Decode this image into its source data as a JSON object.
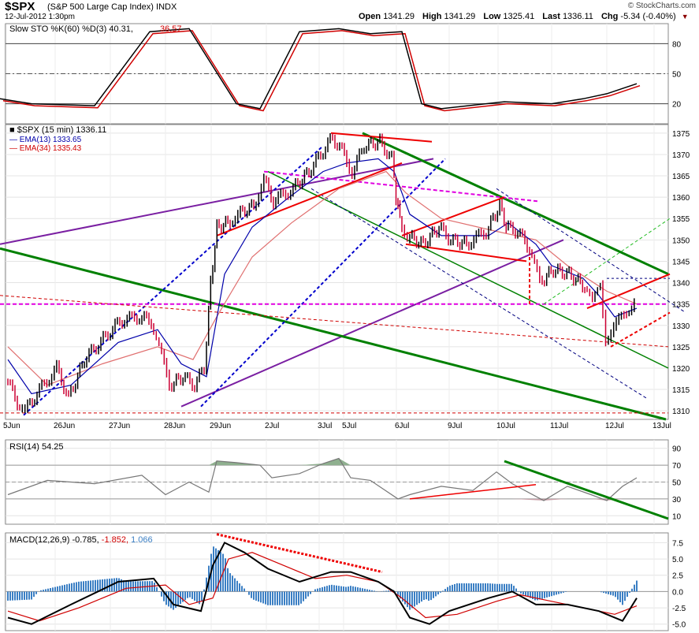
{
  "header": {
    "symbol": "$SPX",
    "description": "(S&P 500 Large Cap Index)",
    "exchange": "INDX",
    "datetime": "12-Jul-2012 1:30pm",
    "open_label": "Open",
    "open": "1341.29",
    "high_label": "High",
    "high": "1341.29",
    "low_label": "Low",
    "low": "1325.41",
    "last_label": "Last",
    "last": "1336.11",
    "chg_label": "Chg",
    "chg": "-5.34 (-0.40%)",
    "copyright": "© StockCharts.com"
  },
  "chart_data": [
    {
      "type": "line",
      "title": "Slow STO %K(60) %D(3)",
      "legend": [
        {
          "name": "%K(60)",
          "value": "40.31",
          "color": "#000000"
        },
        {
          "name": "%D(3)",
          "value": "36.57",
          "color": "#d00000"
        }
      ],
      "yticks": [
        20,
        50,
        80
      ],
      "ylim": [
        0,
        100
      ],
      "points_k": [
        [
          0,
          25
        ],
        [
          40,
          20
        ],
        [
          120,
          18
        ],
        [
          190,
          92
        ],
        [
          240,
          95
        ],
        [
          300,
          20
        ],
        [
          330,
          15
        ],
        [
          380,
          92
        ],
        [
          430,
          95
        ],
        [
          470,
          90
        ],
        [
          510,
          92
        ],
        [
          535,
          20
        ],
        [
          560,
          15
        ],
        [
          640,
          22
        ],
        [
          700,
          20
        ],
        [
          740,
          25
        ],
        [
          770,
          30
        ],
        [
          808,
          40
        ]
      ]
    },
    {
      "type": "line",
      "title": "$SPX (15 min)",
      "last": "1336.11",
      "legend": [
        {
          "name": "$SPX (15 min)",
          "value": "1336.11",
          "color": "#000000"
        },
        {
          "name": "EMA(13)",
          "value": "1333.65",
          "color": "#0000aa"
        },
        {
          "name": "EMA(34)",
          "value": "1335.43",
          "color": "#d00000"
        }
      ],
      "x_labels": [
        "5Jun",
        "26Jun",
        "27Jun",
        "28Jun",
        "29Jun",
        "2Jul",
        "3Jul",
        "5Jul",
        "6Jul",
        "9Jul",
        "10Jul",
        "11Jul",
        "12Jul",
        "13Jul"
      ],
      "yticks": [
        1310,
        1315,
        1320,
        1325,
        1330,
        1335,
        1340,
        1345,
        1350,
        1355,
        1360,
        1365,
        1370,
        1375
      ],
      "ylim": [
        1308,
        1377
      ],
      "price": [
        [
          10,
          1318
        ],
        [
          25,
          1312
        ],
        [
          35,
          1310
        ],
        [
          50,
          1314
        ],
        [
          75,
          1320
        ],
        [
          90,
          1313
        ],
        [
          110,
          1322
        ],
        [
          140,
          1328
        ],
        [
          155,
          1331
        ],
        [
          180,
          1332
        ],
        [
          195,
          1331
        ],
        [
          205,
          1325
        ],
        [
          218,
          1316
        ],
        [
          235,
          1318
        ],
        [
          250,
          1316
        ],
        [
          262,
          1320
        ],
        [
          270,
          1340
        ],
        [
          278,
          1353
        ],
        [
          292,
          1354
        ],
        [
          305,
          1356
        ],
        [
          325,
          1358
        ],
        [
          338,
          1364
        ],
        [
          350,
          1359
        ],
        [
          375,
          1362
        ],
        [
          395,
          1366
        ],
        [
          410,
          1370
        ],
        [
          425,
          1374
        ],
        [
          440,
          1370
        ],
        [
          450,
          1366
        ],
        [
          465,
          1372
        ],
        [
          485,
          1373
        ],
        [
          500,
          1369
        ],
        [
          505,
          1360
        ],
        [
          510,
          1355
        ],
        [
          520,
          1351
        ],
        [
          540,
          1349
        ],
        [
          560,
          1353
        ],
        [
          575,
          1350
        ],
        [
          595,
          1349
        ],
        [
          620,
          1352
        ],
        [
          637,
          1358
        ],
        [
          645,
          1353
        ],
        [
          660,
          1352
        ],
        [
          675,
          1348
        ],
        [
          688,
          1340
        ],
        [
          705,
          1343
        ],
        [
          725,
          1342
        ],
        [
          745,
          1339
        ],
        [
          755,
          1335
        ],
        [
          765,
          1340
        ],
        [
          772,
          1327
        ],
        [
          782,
          1330
        ],
        [
          795,
          1332
        ],
        [
          808,
          1336
        ]
      ],
      "ema13": [
        [
          10,
          1322
        ],
        [
          40,
          1314
        ],
        [
          90,
          1316
        ],
        [
          150,
          1326
        ],
        [
          200,
          1329
        ],
        [
          230,
          1321
        ],
        [
          262,
          1318
        ],
        [
          285,
          1342
        ],
        [
          320,
          1353
        ],
        [
          360,
          1359
        ],
        [
          410,
          1366
        ],
        [
          440,
          1368
        ],
        [
          480,
          1369
        ],
        [
          500,
          1366
        ],
        [
          520,
          1356
        ],
        [
          560,
          1351
        ],
        [
          620,
          1351
        ],
        [
          645,
          1354
        ],
        [
          680,
          1349
        ],
        [
          700,
          1344
        ],
        [
          740,
          1341
        ],
        [
          760,
          1337
        ],
        [
          780,
          1332
        ],
        [
          808,
          1334
        ]
      ],
      "ema34": [
        [
          10,
          1325
        ],
        [
          60,
          1316
        ],
        [
          130,
          1321
        ],
        [
          200,
          1325
        ],
        [
          245,
          1322
        ],
        [
          275,
          1332
        ],
        [
          320,
          1346
        ],
        [
          370,
          1354
        ],
        [
          430,
          1362
        ],
        [
          490,
          1366
        ],
        [
          515,
          1361
        ],
        [
          560,
          1355
        ],
        [
          630,
          1352
        ],
        [
          680,
          1350
        ],
        [
          720,
          1344
        ],
        [
          770,
          1338
        ],
        [
          808,
          1335
        ]
      ]
    },
    {
      "type": "area",
      "title": "RSI(14)",
      "value": "54.25",
      "yticks": [
        10,
        30,
        50,
        70,
        90
      ],
      "ylim": [
        0,
        100
      ],
      "points": [
        [
          10,
          35
        ],
        [
          60,
          52
        ],
        [
          120,
          48
        ],
        [
          180,
          58
        ],
        [
          210,
          35
        ],
        [
          240,
          50
        ],
        [
          265,
          38
        ],
        [
          275,
          75
        ],
        [
          300,
          73
        ],
        [
          330,
          70
        ],
        [
          345,
          55
        ],
        [
          380,
          60
        ],
        [
          410,
          72
        ],
        [
          430,
          78
        ],
        [
          445,
          55
        ],
        [
          470,
          52
        ],
        [
          505,
          30
        ],
        [
          520,
          35
        ],
        [
          560,
          45
        ],
        [
          600,
          40
        ],
        [
          630,
          62
        ],
        [
          650,
          48
        ],
        [
          690,
          28
        ],
        [
          720,
          45
        ],
        [
          750,
          35
        ],
        [
          770,
          28
        ],
        [
          790,
          45
        ],
        [
          808,
          55
        ]
      ]
    },
    {
      "type": "line",
      "title": "MACD(12,26,9)",
      "values": [
        "-0.785",
        "-1.852",
        "1.066"
      ],
      "yticks": [
        -5.0,
        -2.5,
        0.0,
        2.5,
        5.0,
        7.5
      ],
      "ylim": [
        -6,
        9
      ],
      "macd": [
        [
          10,
          -4
        ],
        [
          40,
          -5
        ],
        [
          90,
          -2
        ],
        [
          150,
          1.5
        ],
        [
          195,
          2
        ],
        [
          220,
          -2
        ],
        [
          255,
          -3
        ],
        [
          270,
          4
        ],
        [
          285,
          7.5
        ],
        [
          310,
          6
        ],
        [
          340,
          3.5
        ],
        [
          380,
          1.5
        ],
        [
          420,
          3
        ],
        [
          445,
          3
        ],
        [
          480,
          1.5
        ],
        [
          500,
          0
        ],
        [
          520,
          -4
        ],
        [
          545,
          -5
        ],
        [
          570,
          -3
        ],
        [
          620,
          -1
        ],
        [
          650,
          0
        ],
        [
          680,
          -2
        ],
        [
          720,
          -2
        ],
        [
          760,
          -3
        ],
        [
          790,
          -4.5
        ],
        [
          808,
          -1
        ]
      ],
      "signal": [
        [
          10,
          -3
        ],
        [
          50,
          -4.5
        ],
        [
          100,
          -2.5
        ],
        [
          160,
          0.5
        ],
        [
          210,
          1
        ],
        [
          240,
          -2
        ],
        [
          270,
          -1
        ],
        [
          290,
          5
        ],
        [
          320,
          6
        ],
        [
          360,
          4
        ],
        [
          400,
          2
        ],
        [
          440,
          2.5
        ],
        [
          480,
          1.5
        ],
        [
          510,
          -1
        ],
        [
          540,
          -4
        ],
        [
          580,
          -3.5
        ],
        [
          630,
          -1.5
        ],
        [
          660,
          -0.5
        ],
        [
          700,
          -1.5
        ],
        [
          740,
          -2.5
        ],
        [
          780,
          -3.5
        ],
        [
          808,
          -2.2
        ]
      ]
    }
  ]
}
